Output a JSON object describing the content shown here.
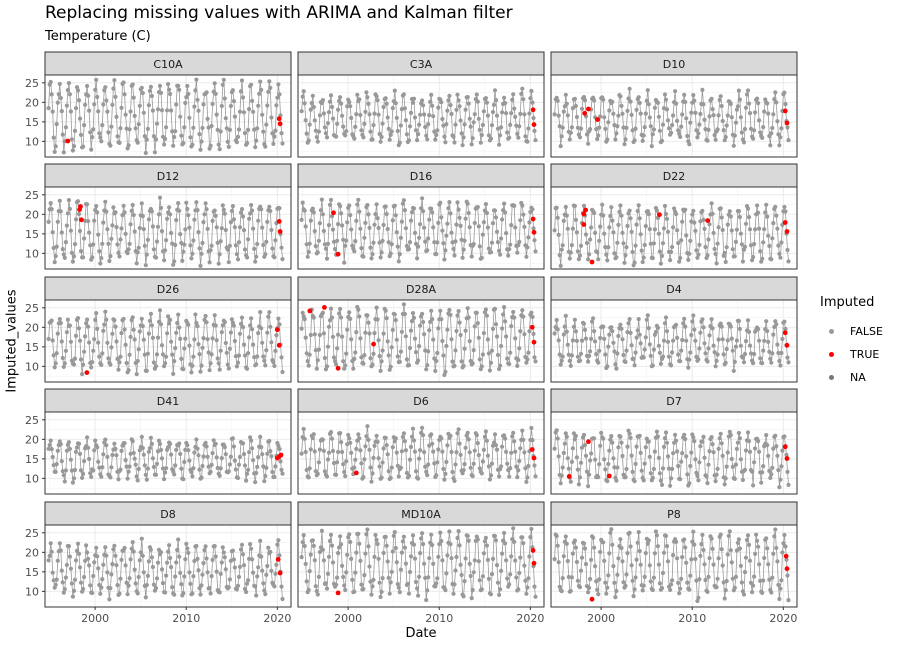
{
  "chart_data": {
    "type": "scatter",
    "title": "Replacing missing values with ARIMA and Kalman filter",
    "subtitle": "Temperature (C)",
    "xlabel": "Date",
    "ylabel": "Imputed_values",
    "xlim": [
      1994.5,
      2021.5
    ],
    "ylim": [
      6,
      27
    ],
    "x_ticks": [
      "2000",
      "2010",
      "2020"
    ],
    "x_tick_values": [
      2000,
      2010,
      2020
    ],
    "y_ticks": [
      "10",
      "15",
      "20",
      "25"
    ],
    "y_tick_values": [
      10,
      15,
      20,
      25
    ],
    "grid": true,
    "legend": {
      "title": "Imputed",
      "position": "right",
      "items": [
        {
          "label": "FALSE",
          "color": "#999999"
        },
        {
          "label": "TRUE",
          "color": "#ff0000"
        },
        {
          "label": "NA",
          "color": "#777777"
        }
      ]
    },
    "colors": {
      "false": "#999999",
      "true": "#ff0000",
      "na": "#777777"
    },
    "series_style": {
      "base_range": [
        10,
        22
      ],
      "start_year": 1994.9,
      "end_year": 2020.6
    },
    "panels": [
      {
        "name": "C10A",
        "range": [
          8,
          25
        ],
        "imputed": [
          [
            1997.0,
            10.1
          ],
          [
            2020.2,
            15.8
          ],
          [
            2020.3,
            14.5
          ]
        ]
      },
      {
        "name": "C3A",
        "range": [
          10,
          22
        ],
        "imputed": [
          [
            2020.3,
            18.1
          ],
          [
            2020.4,
            14.3
          ]
        ]
      },
      {
        "name": "D10",
        "range": [
          10,
          22
        ],
        "imputed": [
          [
            1998.2,
            17.2
          ],
          [
            1998.6,
            18.3
          ],
          [
            1999.6,
            15.6
          ],
          [
            2020.2,
            17.8
          ],
          [
            2020.4,
            14.7
          ]
        ]
      },
      {
        "name": "D12",
        "range": [
          8,
          23
        ],
        "imputed": [
          [
            1998.3,
            21.2
          ],
          [
            1998.4,
            22.0
          ],
          [
            1998.5,
            18.6
          ],
          [
            2020.2,
            18.2
          ],
          [
            2020.3,
            15.6
          ]
        ]
      },
      {
        "name": "D16",
        "range": [
          9,
          23
        ],
        "imputed": [
          [
            1998.4,
            20.4
          ],
          [
            1998.9,
            9.8
          ],
          [
            2020.3,
            18.8
          ],
          [
            2020.4,
            15.4
          ]
        ]
      },
      {
        "name": "D22",
        "range": [
          8,
          22
        ],
        "imputed": [
          [
            1998.1,
            20.1
          ],
          [
            1998.3,
            21.1
          ],
          [
            1998.1,
            17.4
          ],
          [
            1999.0,
            7.8
          ],
          [
            2006.4,
            19.9
          ],
          [
            2011.7,
            18.4
          ],
          [
            2020.2,
            17.9
          ],
          [
            2020.4,
            15.6
          ]
        ]
      },
      {
        "name": "D26",
        "range": [
          9,
          23
        ],
        "imputed": [
          [
            1999.1,
            8.4
          ],
          [
            2020.0,
            19.4
          ],
          [
            2020.2,
            15.4
          ]
        ]
      },
      {
        "name": "D28A",
        "range": [
          9,
          25
        ],
        "imputed": [
          [
            1995.8,
            24.2
          ],
          [
            1997.4,
            25.1
          ],
          [
            1998.9,
            9.5
          ],
          [
            2002.8,
            15.7
          ],
          [
            2020.2,
            20.0
          ],
          [
            2020.4,
            16.2
          ]
        ]
      },
      {
        "name": "D4",
        "range": [
          10,
          22
        ],
        "imputed": [
          [
            2020.2,
            18.6
          ],
          [
            2020.4,
            15.4
          ]
        ]
      },
      {
        "name": "D41",
        "range": [
          10,
          20
        ],
        "imputed": [
          [
            2020.0,
            15.2
          ],
          [
            2020.2,
            15.6
          ],
          [
            2020.4,
            16.0
          ]
        ]
      },
      {
        "name": "D6",
        "range": [
          10,
          22
        ],
        "imputed": [
          [
            2000.9,
            11.4
          ],
          [
            2020.2,
            17.4
          ],
          [
            2020.4,
            15.2
          ]
        ]
      },
      {
        "name": "D7",
        "range": [
          9,
          22
        ],
        "imputed": [
          [
            1996.5,
            10.5
          ],
          [
            1998.6,
            19.4
          ],
          [
            2000.9,
            10.6
          ],
          [
            2020.2,
            18.1
          ],
          [
            2020.4,
            15.1
          ]
        ]
      },
      {
        "name": "D8",
        "range": [
          9,
          22
        ],
        "imputed": [
          [
            2020.1,
            18.2
          ],
          [
            2020.3,
            14.7
          ]
        ]
      },
      {
        "name": "MD10A",
        "range": [
          9,
          25
        ],
        "imputed": [
          [
            1998.9,
            9.6
          ],
          [
            2020.3,
            20.5
          ],
          [
            2020.4,
            17.2
          ]
        ]
      },
      {
        "name": "P8",
        "range": [
          9,
          25
        ],
        "imputed": [
          [
            1999.0,
            8.0
          ],
          [
            2020.3,
            19.0
          ],
          [
            2020.4,
            15.8
          ]
        ]
      }
    ]
  }
}
